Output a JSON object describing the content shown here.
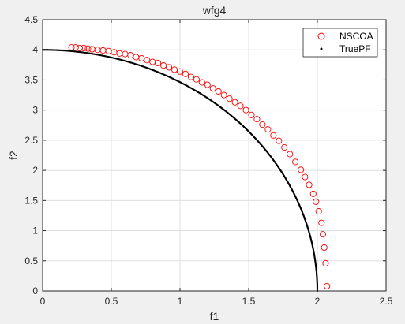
{
  "chart_data": {
    "type": "scatter",
    "title": "wfg4",
    "xlabel": "f1",
    "ylabel": "f2",
    "xlim": [
      0,
      2.5
    ],
    "ylim": [
      0,
      4.5
    ],
    "xticks": [
      0,
      0.5,
      1,
      1.5,
      2,
      2.5
    ],
    "xtick_labels": [
      "0",
      "0.5",
      "1",
      "1.5",
      "2",
      "2.5"
    ],
    "yticks": [
      0,
      0.5,
      1,
      1.5,
      2,
      2.5,
      3,
      3.5,
      4,
      4.5
    ],
    "ytick_labels": [
      "0",
      "0.5",
      "1",
      "1.5",
      "2",
      "2.5",
      "3",
      "3.5",
      "4",
      "4.5"
    ],
    "grid": true,
    "legend_position": "top-right",
    "series": [
      {
        "name": "NSCOA",
        "marker": "circle-open",
        "color": "#ff0000",
        "x": [
          0.21,
          0.24,
          0.27,
          0.3,
          0.33,
          0.36,
          0.4,
          0.44,
          0.48,
          0.52,
          0.56,
          0.6,
          0.64,
          0.68,
          0.72,
          0.76,
          0.8,
          0.84,
          0.88,
          0.92,
          0.96,
          1.0,
          1.04,
          1.08,
          1.12,
          1.16,
          1.2,
          1.24,
          1.28,
          1.32,
          1.36,
          1.4,
          1.44,
          1.48,
          1.52,
          1.56,
          1.6,
          1.64,
          1.68,
          1.72,
          1.76,
          1.8,
          1.84,
          1.88,
          1.91,
          1.94,
          1.97,
          1.99,
          2.01,
          2.03,
          2.04,
          2.05,
          2.06,
          2.07
        ],
        "y": [
          4.04,
          4.04,
          4.03,
          4.03,
          4.02,
          4.01,
          4.0,
          3.99,
          3.98,
          3.96,
          3.94,
          3.93,
          3.91,
          3.88,
          3.86,
          3.83,
          3.8,
          3.78,
          3.74,
          3.71,
          3.67,
          3.64,
          3.6,
          3.55,
          3.51,
          3.46,
          3.42,
          3.36,
          3.31,
          3.25,
          3.19,
          3.13,
          3.07,
          3.0,
          2.92,
          2.85,
          2.76,
          2.68,
          2.58,
          2.49,
          2.38,
          2.27,
          2.14,
          2.01,
          1.89,
          1.76,
          1.61,
          1.48,
          1.32,
          1.13,
          0.94,
          0.72,
          0.46,
          0.08
        ]
      },
      {
        "name": "TruePF",
        "marker": "dot",
        "color": "#000000",
        "x_semi_axis": 2,
        "y_semi_axis": 4
      }
    ]
  }
}
